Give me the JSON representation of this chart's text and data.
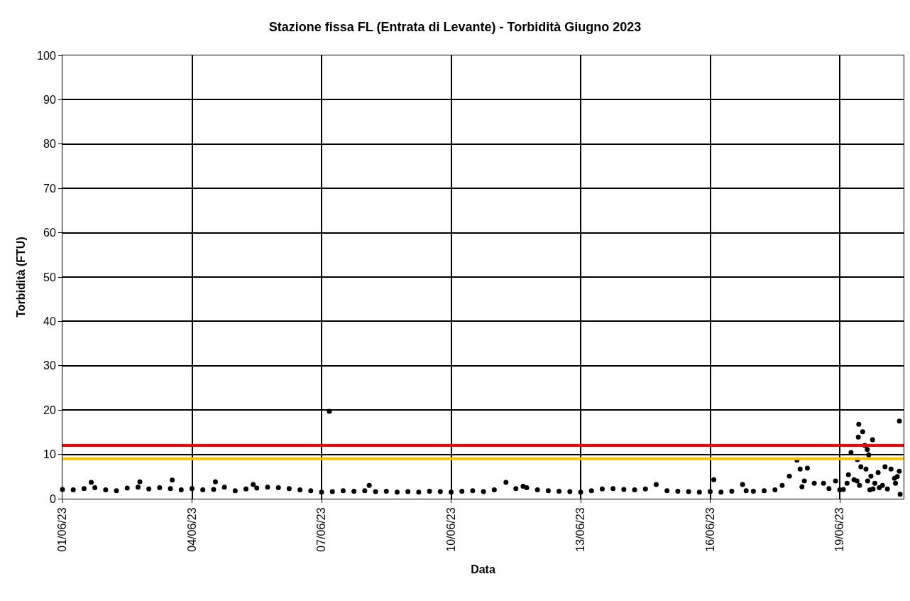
{
  "chart_data": {
    "type": "scatter",
    "title": "Stazione fissa FL (Entrata di Levante) - Torbidità Giugno 2023",
    "xlabel": "Data",
    "ylabel": "Torbidità (FTU)",
    "x": [
      "2023-06-01T00:00",
      "2023-06-01T06:00",
      "2023-06-01T12:00",
      "2023-06-01T16:00",
      "2023-06-01T18:00",
      "2023-06-02T00:00",
      "2023-06-02T06:00",
      "2023-06-02T12:00",
      "2023-06-02T18:00",
      "2023-06-02T19:00",
      "2023-06-03T00:00",
      "2023-06-03T06:00",
      "2023-06-03T12:00",
      "2023-06-03T13:00",
      "2023-06-03T18:00",
      "2023-06-04T00:00",
      "2023-06-04T06:00",
      "2023-06-04T12:00",
      "2023-06-04T13:00",
      "2023-06-04T18:00",
      "2023-06-05T00:00",
      "2023-06-05T06:00",
      "2023-06-05T10:00",
      "2023-06-05T12:00",
      "2023-06-05T18:00",
      "2023-06-06T00:00",
      "2023-06-06T06:00",
      "2023-06-06T12:00",
      "2023-06-06T18:00",
      "2023-06-07T00:00",
      "2023-06-07T04:20",
      "2023-06-07T06:00",
      "2023-06-07T12:00",
      "2023-06-07T18:00",
      "2023-06-08T00:00",
      "2023-06-08T02:30",
      "2023-06-08T06:00",
      "2023-06-08T12:00",
      "2023-06-08T18:00",
      "2023-06-09T00:00",
      "2023-06-09T06:00",
      "2023-06-09T12:00",
      "2023-06-09T18:00",
      "2023-06-10T00:00",
      "2023-06-10T06:00",
      "2023-06-10T12:00",
      "2023-06-10T18:00",
      "2023-06-11T00:00",
      "2023-06-11T06:30",
      "2023-06-11T12:00",
      "2023-06-11T16:00",
      "2023-06-11T18:00",
      "2023-06-12T00:00",
      "2023-06-12T06:00",
      "2023-06-12T12:00",
      "2023-06-12T18:00",
      "2023-06-13T00:00",
      "2023-06-13T06:00",
      "2023-06-13T12:00",
      "2023-06-13T18:00",
      "2023-06-14T00:00",
      "2023-06-14T06:00",
      "2023-06-14T12:00",
      "2023-06-14T18:00",
      "2023-06-15T00:00",
      "2023-06-15T06:00",
      "2023-06-15T12:00",
      "2023-06-15T18:00",
      "2023-06-16T00:00",
      "2023-06-16T02:00",
      "2023-06-16T06:00",
      "2023-06-16T12:00",
      "2023-06-16T18:00",
      "2023-06-16T20:00",
      "2023-06-17T00:00",
      "2023-06-17T06:00",
      "2023-06-17T12:00",
      "2023-06-17T16:00",
      "2023-06-17T20:00",
      "2023-06-18T00:15",
      "2023-06-18T02:00",
      "2023-06-18T03:00",
      "2023-06-18T04:20",
      "2023-06-18T06:00",
      "2023-06-18T09:50",
      "2023-06-18T15:00",
      "2023-06-18T18:00",
      "2023-06-18T21:40",
      "2023-06-19T00:00",
      "2023-06-19T02:00",
      "2023-06-19T04:05",
      "2023-06-19T04:50",
      "2023-06-19T06:15",
      "2023-06-19T07:55",
      "2023-06-19T09:35",
      "2023-06-19T09:50",
      "2023-06-19T10:20",
      "2023-06-19T10:35",
      "2023-06-19T11:00",
      "2023-06-19T11:45",
      "2023-06-19T12:45",
      "2023-06-19T13:55",
      "2023-06-19T14:35",
      "2023-06-19T15:20",
      "2023-06-19T15:30",
      "2023-06-19T16:05",
      "2023-06-19T16:45",
      "2023-06-19T17:20",
      "2023-06-19T18:15",
      "2023-06-19T18:30",
      "2023-06-19T19:30",
      "2023-06-19T21:20",
      "2023-06-19T22:00",
      "2023-06-19T23:45",
      "2023-06-20T01:10",
      "2023-06-20T02:30",
      "2023-06-20T04:30",
      "2023-06-20T06:25",
      "2023-06-20T07:00",
      "2023-06-20T08:00",
      "2023-06-20T09:05",
      "2023-06-20T09:10",
      "2023-06-20T09:35"
    ],
    "values": [
      2.1,
      2.0,
      2.3,
      3.7,
      2.5,
      2.0,
      1.8,
      2.4,
      2.6,
      3.8,
      2.2,
      2.5,
      2.3,
      4.2,
      2.0,
      2.3,
      2.0,
      2.1,
      3.8,
      2.6,
      1.8,
      2.2,
      3.2,
      2.4,
      2.6,
      2.5,
      2.3,
      2.0,
      1.8,
      1.5,
      19.7,
      1.6,
      1.8,
      1.7,
      1.8,
      3.0,
      1.6,
      1.7,
      1.5,
      1.6,
      1.5,
      1.7,
      1.6,
      1.5,
      1.7,
      1.8,
      1.6,
      2.0,
      3.7,
      2.3,
      2.8,
      2.5,
      2.0,
      1.8,
      1.7,
      1.6,
      1.5,
      1.8,
      2.2,
      2.3,
      2.1,
      2.0,
      2.2,
      3.2,
      1.8,
      1.7,
      1.6,
      1.5,
      1.6,
      4.3,
      1.5,
      1.7,
      3.2,
      1.8,
      1.7,
      1.8,
      2.0,
      3.0,
      5.1,
      8.7,
      6.7,
      2.7,
      4.0,
      6.9,
      3.5,
      3.5,
      2.3,
      4.0,
      2.0,
      2.1,
      3.5,
      5.4,
      10.4,
      4.3,
      4.0,
      8.8,
      13.9,
      16.8,
      3.0,
      7.2,
      15.1,
      12.0,
      6.7,
      11.1,
      4.0,
      9.9,
      2.0,
      5.1,
      13.3,
      2.2,
      3.5,
      5.9,
      2.5,
      3.0,
      7.2,
      2.2,
      6.7,
      4.6,
      3.5,
      5.0,
      6.2,
      17.5,
      1.0
    ],
    "color": "#000000",
    "marker": "circle",
    "xlim": [
      "2023-06-01",
      "2023-06-20T11:30"
    ],
    "xticks": [
      {
        "value": "2023-06-01",
        "label": "01/06/23"
      },
      {
        "value": "2023-06-04",
        "label": "04/06/23"
      },
      {
        "value": "2023-06-07",
        "label": "07/06/23"
      },
      {
        "value": "2023-06-10",
        "label": "10/06/23"
      },
      {
        "value": "2023-06-13",
        "label": "13/06/23"
      },
      {
        "value": "2023-06-16",
        "label": "16/06/23"
      },
      {
        "value": "2023-06-19",
        "label": "19/06/23"
      }
    ],
    "ylim": [
      0,
      100
    ],
    "yticks": [
      0,
      10,
      20,
      30,
      40,
      50,
      60,
      70,
      80,
      90,
      100
    ],
    "grid": true,
    "ref_lines": [
      {
        "axis": "y",
        "value": 12,
        "color": "#ff0000"
      },
      {
        "axis": "y",
        "value": 9,
        "color": "#ffc000"
      }
    ]
  }
}
